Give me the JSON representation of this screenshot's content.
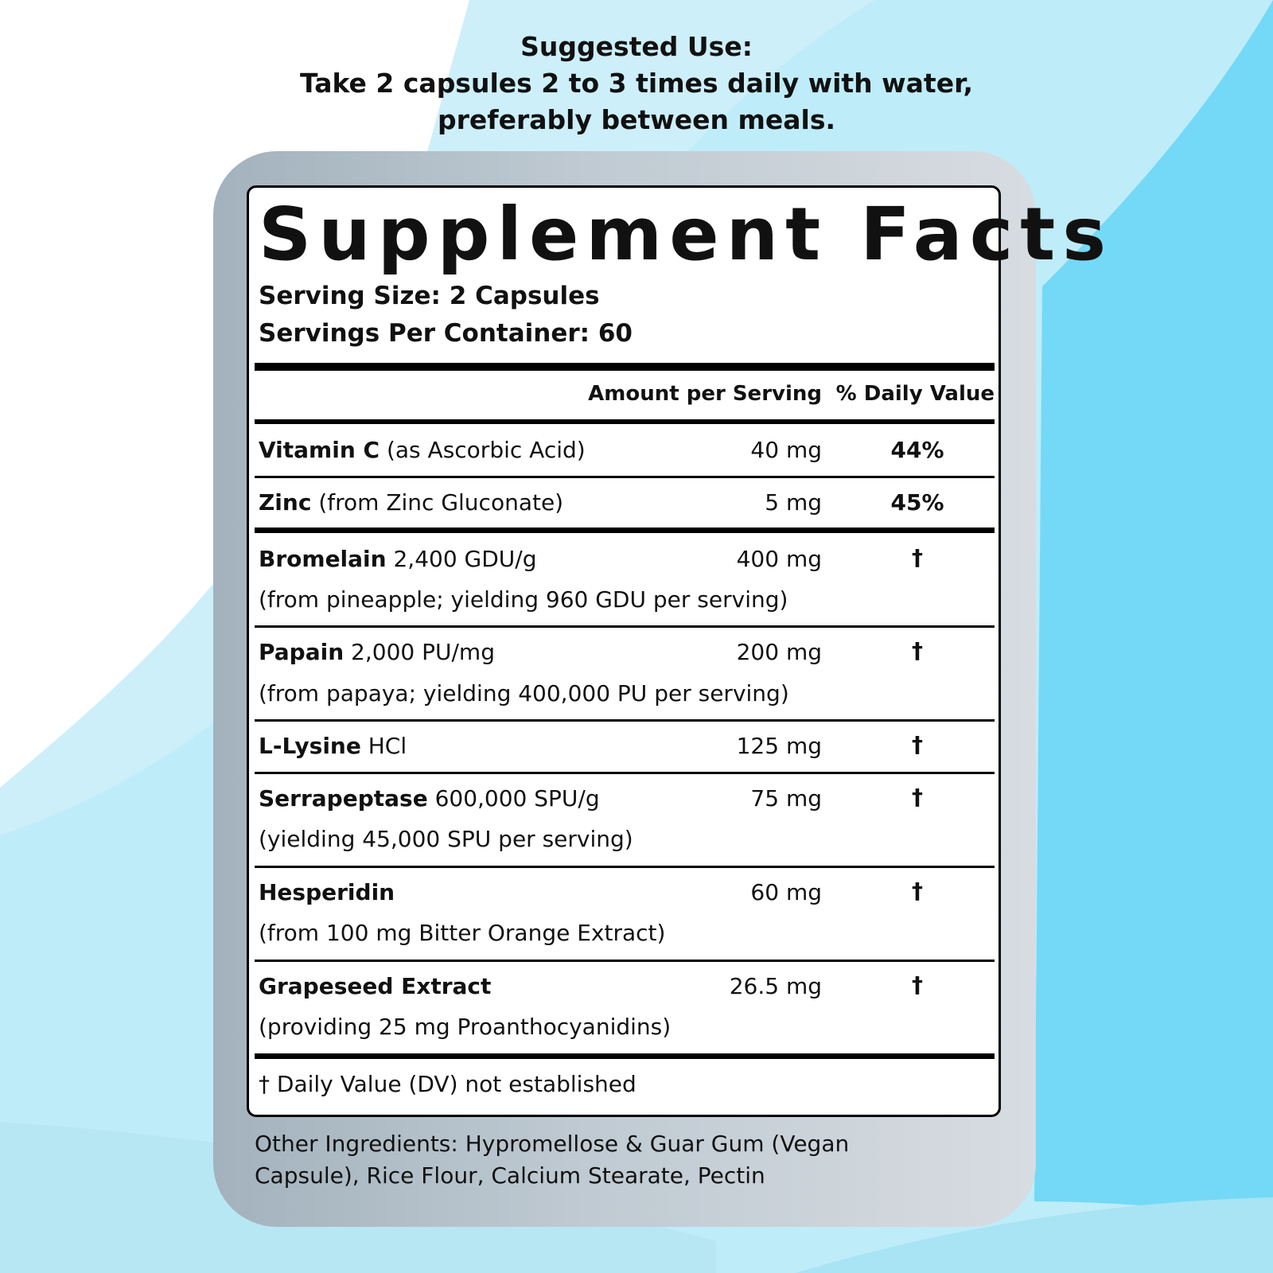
{
  "suggested_use": {
    "heading": "Suggested Use:",
    "line1": "Take 2 capsules 2 to 3 times daily with water,",
    "line2": "preferably between meals."
  },
  "facts": {
    "title": "Supplement Facts",
    "serving_size": "Serving Size: 2 Capsules",
    "servings_per_container": "Servings Per Container: 60",
    "col_amount": "Amount per Serving",
    "col_dv": "% Daily Value",
    "rows": [
      {
        "name": "Vitamin C",
        "detail": " (as Ascorbic Acid)",
        "sub": "",
        "amount": "40 mg",
        "dv": "44%"
      },
      {
        "name": "Zinc",
        "detail": " (from Zinc Gluconate)",
        "sub": "",
        "amount": "5 mg",
        "dv": "45%"
      },
      {
        "name": "Bromelain",
        "detail": " 2,400 GDU/g",
        "sub": "(from pineapple; yielding 960 GDU per serving)",
        "amount": "400 mg",
        "dv": "†"
      },
      {
        "name": "Papain",
        "detail": " 2,000 PU/mg",
        "sub": "(from papaya; yielding 400,000 PU per serving)",
        "amount": "200 mg",
        "dv": "†"
      },
      {
        "name": "L-Lysine",
        "detail": " HCl",
        "sub": "",
        "amount": "125 mg",
        "dv": "†"
      },
      {
        "name": "Serrapeptase",
        "detail": " 600,000 SPU/g",
        "sub": "(yielding 45,000 SPU per serving)",
        "amount": "75 mg",
        "dv": "†"
      },
      {
        "name": "Hesperidin",
        "detail": "",
        "sub": "(from 100 mg Bitter Orange Extract)",
        "amount": "60 mg",
        "dv": "†"
      },
      {
        "name": "Grapeseed Extract",
        "detail": "",
        "sub": "(providing 25 mg Proanthocyanidins)",
        "amount": "26.5 mg",
        "dv": "†"
      }
    ],
    "footnote": "† Daily Value (DV) not established"
  },
  "other_ingredients": "Other Ingredients: Hypromellose & Guar Gum (Vegan Capsule), Rice Flour, Calcium Stearate, Pectin",
  "colors": {
    "accent_blue": "#74d9f6",
    "light_blue": "#c9eef8",
    "panel_grey": "#b8c3cb"
  }
}
